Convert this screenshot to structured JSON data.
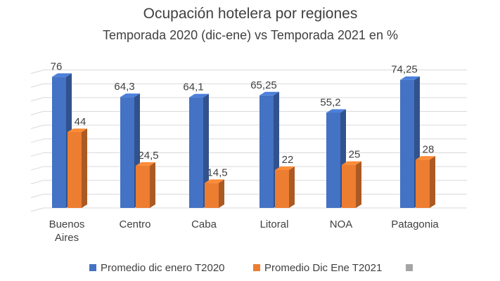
{
  "chart_data": {
    "type": "bar",
    "title": "Ocupación hotelera por regiones",
    "subtitle": "Temporada 2020 (dic-ene) vs Temporada 2021 en %",
    "categories": [
      [
        "Buenos",
        "Aires"
      ],
      [
        "Centro"
      ],
      [
        "Caba"
      ],
      [
        "Litoral"
      ],
      [
        "NOA"
      ],
      [
        "Patagonia"
      ]
    ],
    "series": [
      {
        "name": "Promedio dic enero T2020",
        "color": "#4472c4",
        "values": [
          76,
          64.3,
          64.1,
          65.25,
          55.2,
          74.25
        ],
        "labels": [
          "76",
          "64,3",
          "64,1",
          "65,25",
          "55,2",
          "74,25"
        ]
      },
      {
        "name": "Promedio Dic Ene T2021",
        "color": "#ed7d31",
        "values": [
          44,
          24.5,
          14.5,
          22,
          25,
          28
        ],
        "labels": [
          "44",
          "24,5",
          "14,5",
          "22",
          "25",
          "28"
        ]
      }
    ],
    "extra_legend_marker_color": "#a5a5a5",
    "ylim": [
      0,
      80
    ],
    "grid": true,
    "legend_position": "bottom",
    "three_d": true
  }
}
